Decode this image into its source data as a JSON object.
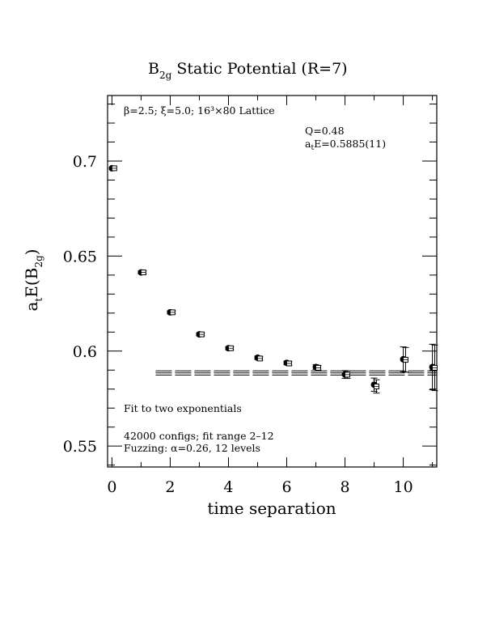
{
  "chart_data": {
    "type": "scatter",
    "title_main": "B",
    "title_sub": "2g",
    "title_rest": " Static Potential (R=7)",
    "xlabel": "time separation",
    "ylabel_main": "a",
    "ylabel_t": "t",
    "ylabel_mid": "E(B",
    "ylabel_sub": "2g",
    "ylabel_end": ")",
    "xlim": [
      -0.15,
      11.15
    ],
    "ylim": [
      0.539,
      0.7345
    ],
    "x_ticks": [
      0,
      2,
      4,
      6,
      8,
      10
    ],
    "x_tick_labels": [
      "0",
      "2",
      "4",
      "6",
      "8",
      "10"
    ],
    "y_ticks": [
      0.55,
      0.6,
      0.65,
      0.7
    ],
    "y_tick_labels": [
      "0.55",
      "0.6",
      "0.65",
      "0.7"
    ],
    "series": [
      {
        "marker": "filled-circle",
        "x": [
          0,
          1,
          2,
          3,
          4,
          5,
          6,
          7,
          8,
          9,
          10,
          11
        ],
        "y": [
          0.6962,
          0.6414,
          0.6204,
          0.6088,
          0.6015,
          0.5965,
          0.5938,
          0.5916,
          0.5877,
          0.5823,
          0.5957,
          0.5916
        ],
        "err": [
          0.0006,
          0.0008,
          0.0008,
          0.0008,
          0.0008,
          0.0009,
          0.001,
          0.0012,
          0.002,
          0.0035,
          0.0065,
          0.012
        ]
      },
      {
        "marker": "open-square",
        "x": [
          0.08,
          1.08,
          2.08,
          3.08,
          4.08,
          5.08,
          6.08,
          7.08,
          8.08,
          9.08,
          10.08,
          11.08
        ],
        "y": [
          0.6962,
          0.6414,
          0.6204,
          0.6088,
          0.6015,
          0.5961,
          0.5935,
          0.5912,
          0.5876,
          0.5814,
          0.5954,
          0.5912
        ],
        "err": [
          0.0006,
          0.0008,
          0.0008,
          0.0008,
          0.0008,
          0.0009,
          0.001,
          0.0012,
          0.002,
          0.0035,
          0.0065,
          0.012
        ]
      }
    ],
    "fit": {
      "x_range": [
        1.5,
        11.15
      ],
      "value": 0.5885,
      "error": 0.0011
    },
    "annotations": {
      "lattice": "β=2.5; ξ=5.0; 16³×80 Lattice",
      "q": "Q=0.48",
      "energy_main": "a",
      "energy_sub": "t",
      "energy_rest": "E=0.5885(11)",
      "fit_note": "Fit to two exponentials",
      "configs": "42000 configs; fit range 2–12",
      "fuzzing": "Fuzzing: α=0.26, 12 levels"
    }
  }
}
